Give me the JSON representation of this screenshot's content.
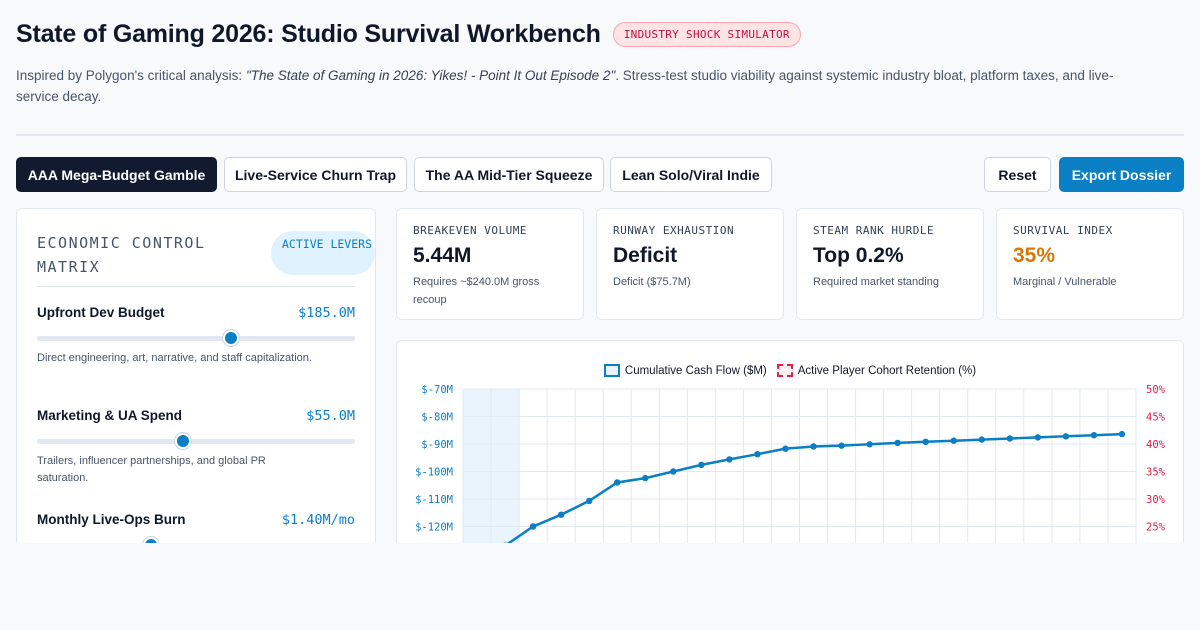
{
  "header": {
    "title": "State of Gaming 2026: Studio Survival Workbench",
    "badge": "INDUSTRY SHOCK SIMULATOR",
    "subtitle_prefix": "Inspired by Polygon's critical analysis: ",
    "subtitle_quote": "\"The State of Gaming in 2026: Yikes! - Point It Out Episode 2\"",
    "subtitle_suffix": ". Stress-test studio viability against systemic industry bloat, platform taxes, and live-service decay."
  },
  "scenarios": [
    {
      "label": "AAA Mega-Budget Gamble",
      "active": true
    },
    {
      "label": "Live-Service Churn Trap",
      "active": false
    },
    {
      "label": "The AA Mid-Tier Squeeze",
      "active": false
    },
    {
      "label": "Lean Solo/Viral Indie",
      "active": false
    }
  ],
  "actions": {
    "reset": "Reset",
    "export": "Export Dossier"
  },
  "panel": {
    "title": "ECONOMIC CONTROL MATRIX",
    "pill": "ACTIVE LEVERS",
    "levers": [
      {
        "label": "Upfront Dev Budget",
        "value": "$185.0M",
        "fraction": 0.61,
        "desc": "Direct engineering, art, narrative, and staff capitalization."
      },
      {
        "label": "Marketing & UA Spend",
        "value": "$55.0M",
        "fraction": 0.46,
        "desc": "Trailers, influencer partnerships, and global PR saturation."
      },
      {
        "label": "Monthly Live-Ops Burn",
        "value": "$1.40M/mo",
        "fraction": 0.36,
        "desc": ""
      }
    ]
  },
  "cards": [
    {
      "label": "BREAKEVEN VOLUME",
      "value": "5.44M",
      "sub": "Requires ~$240.0M gross recoup",
      "value_color": "#0f172a"
    },
    {
      "label": "RUNWAY EXHAUSTION",
      "value": "Deficit",
      "sub": "Deficit ($75.7M)",
      "value_color": "#0f172a"
    },
    {
      "label": "STEAM RANK HURDLE",
      "value": "Top 0.2%",
      "sub": "Required market standing",
      "value_color": "#0f172a"
    },
    {
      "label": "SURVIVAL INDEX",
      "value": "35%",
      "sub": "Marginal / Vulnerable",
      "value_color": "#d97706"
    }
  ],
  "chart_data": {
    "type": "line",
    "legend": [
      "Cumulative Cash Flow ($M)",
      "Active Player Cohort Retention (%)"
    ],
    "y_left_ticks": [
      "$-70M",
      "$-80M",
      "$-90M",
      "$-100M",
      "$-110M",
      "$-120M"
    ],
    "y_right_ticks": [
      "50%",
      "45%",
      "40%",
      "35%",
      "30%",
      "25%"
    ],
    "ylim_left": [
      -130,
      -70
    ],
    "series": [
      {
        "name": "Cumulative Cash Flow ($M)",
        "color": "#0a7fc4",
        "values": [
          -132,
          -127,
          -120,
          -115.7,
          -110.7,
          -104,
          -102.4,
          -100,
          -97.6,
          -95.6,
          -93.7,
          -91.7,
          -90.9,
          -90.6,
          -90.1,
          -89.6,
          -89.2,
          -88.8,
          -88.4,
          -88,
          -87.6,
          -87.2,
          -86.8,
          -86.4
        ]
      }
    ],
    "grid": true
  }
}
